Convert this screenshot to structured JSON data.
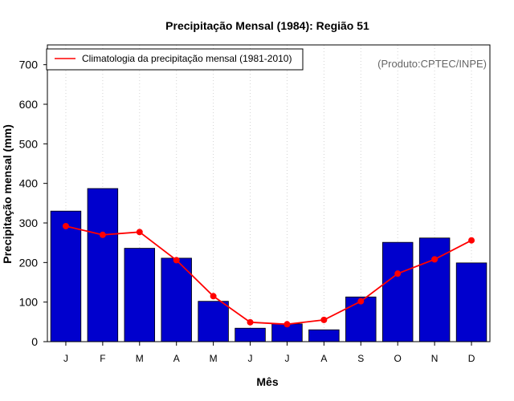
{
  "chart_data": {
    "type": "bar",
    "title": "Precipitação Mensal (1984): Região 51",
    "xlabel": "Mês",
    "ylabel": "Precipitação mensal (mm)",
    "ylim": [
      0,
      750
    ],
    "yticks": [
      0,
      100,
      200,
      300,
      400,
      500,
      600,
      700
    ],
    "categories": [
      "J",
      "F",
      "M",
      "A",
      "M",
      "J",
      "J",
      "A",
      "S",
      "O",
      "N",
      "D"
    ],
    "series": [
      {
        "name": "Precipitação mensal (1984)",
        "kind": "bar",
        "color": "#0000cd",
        "values": [
          330,
          387,
          236,
          211,
          102,
          34,
          45,
          30,
          113,
          251,
          262,
          199
        ]
      },
      {
        "name": "Climatologia da precipitação mensal (1981-2010)",
        "kind": "line",
        "color": "#ff0000",
        "values": [
          292,
          270,
          277,
          206,
          115,
          49,
          44,
          55,
          102,
          172,
          208,
          256
        ]
      }
    ],
    "legend": {
      "position": "top-left",
      "label": "Climatologia da precipitação mensal (1981-2010)"
    },
    "credit": "(Produto:CPTEC/INPE)",
    "grid": "vertical-dotted"
  }
}
